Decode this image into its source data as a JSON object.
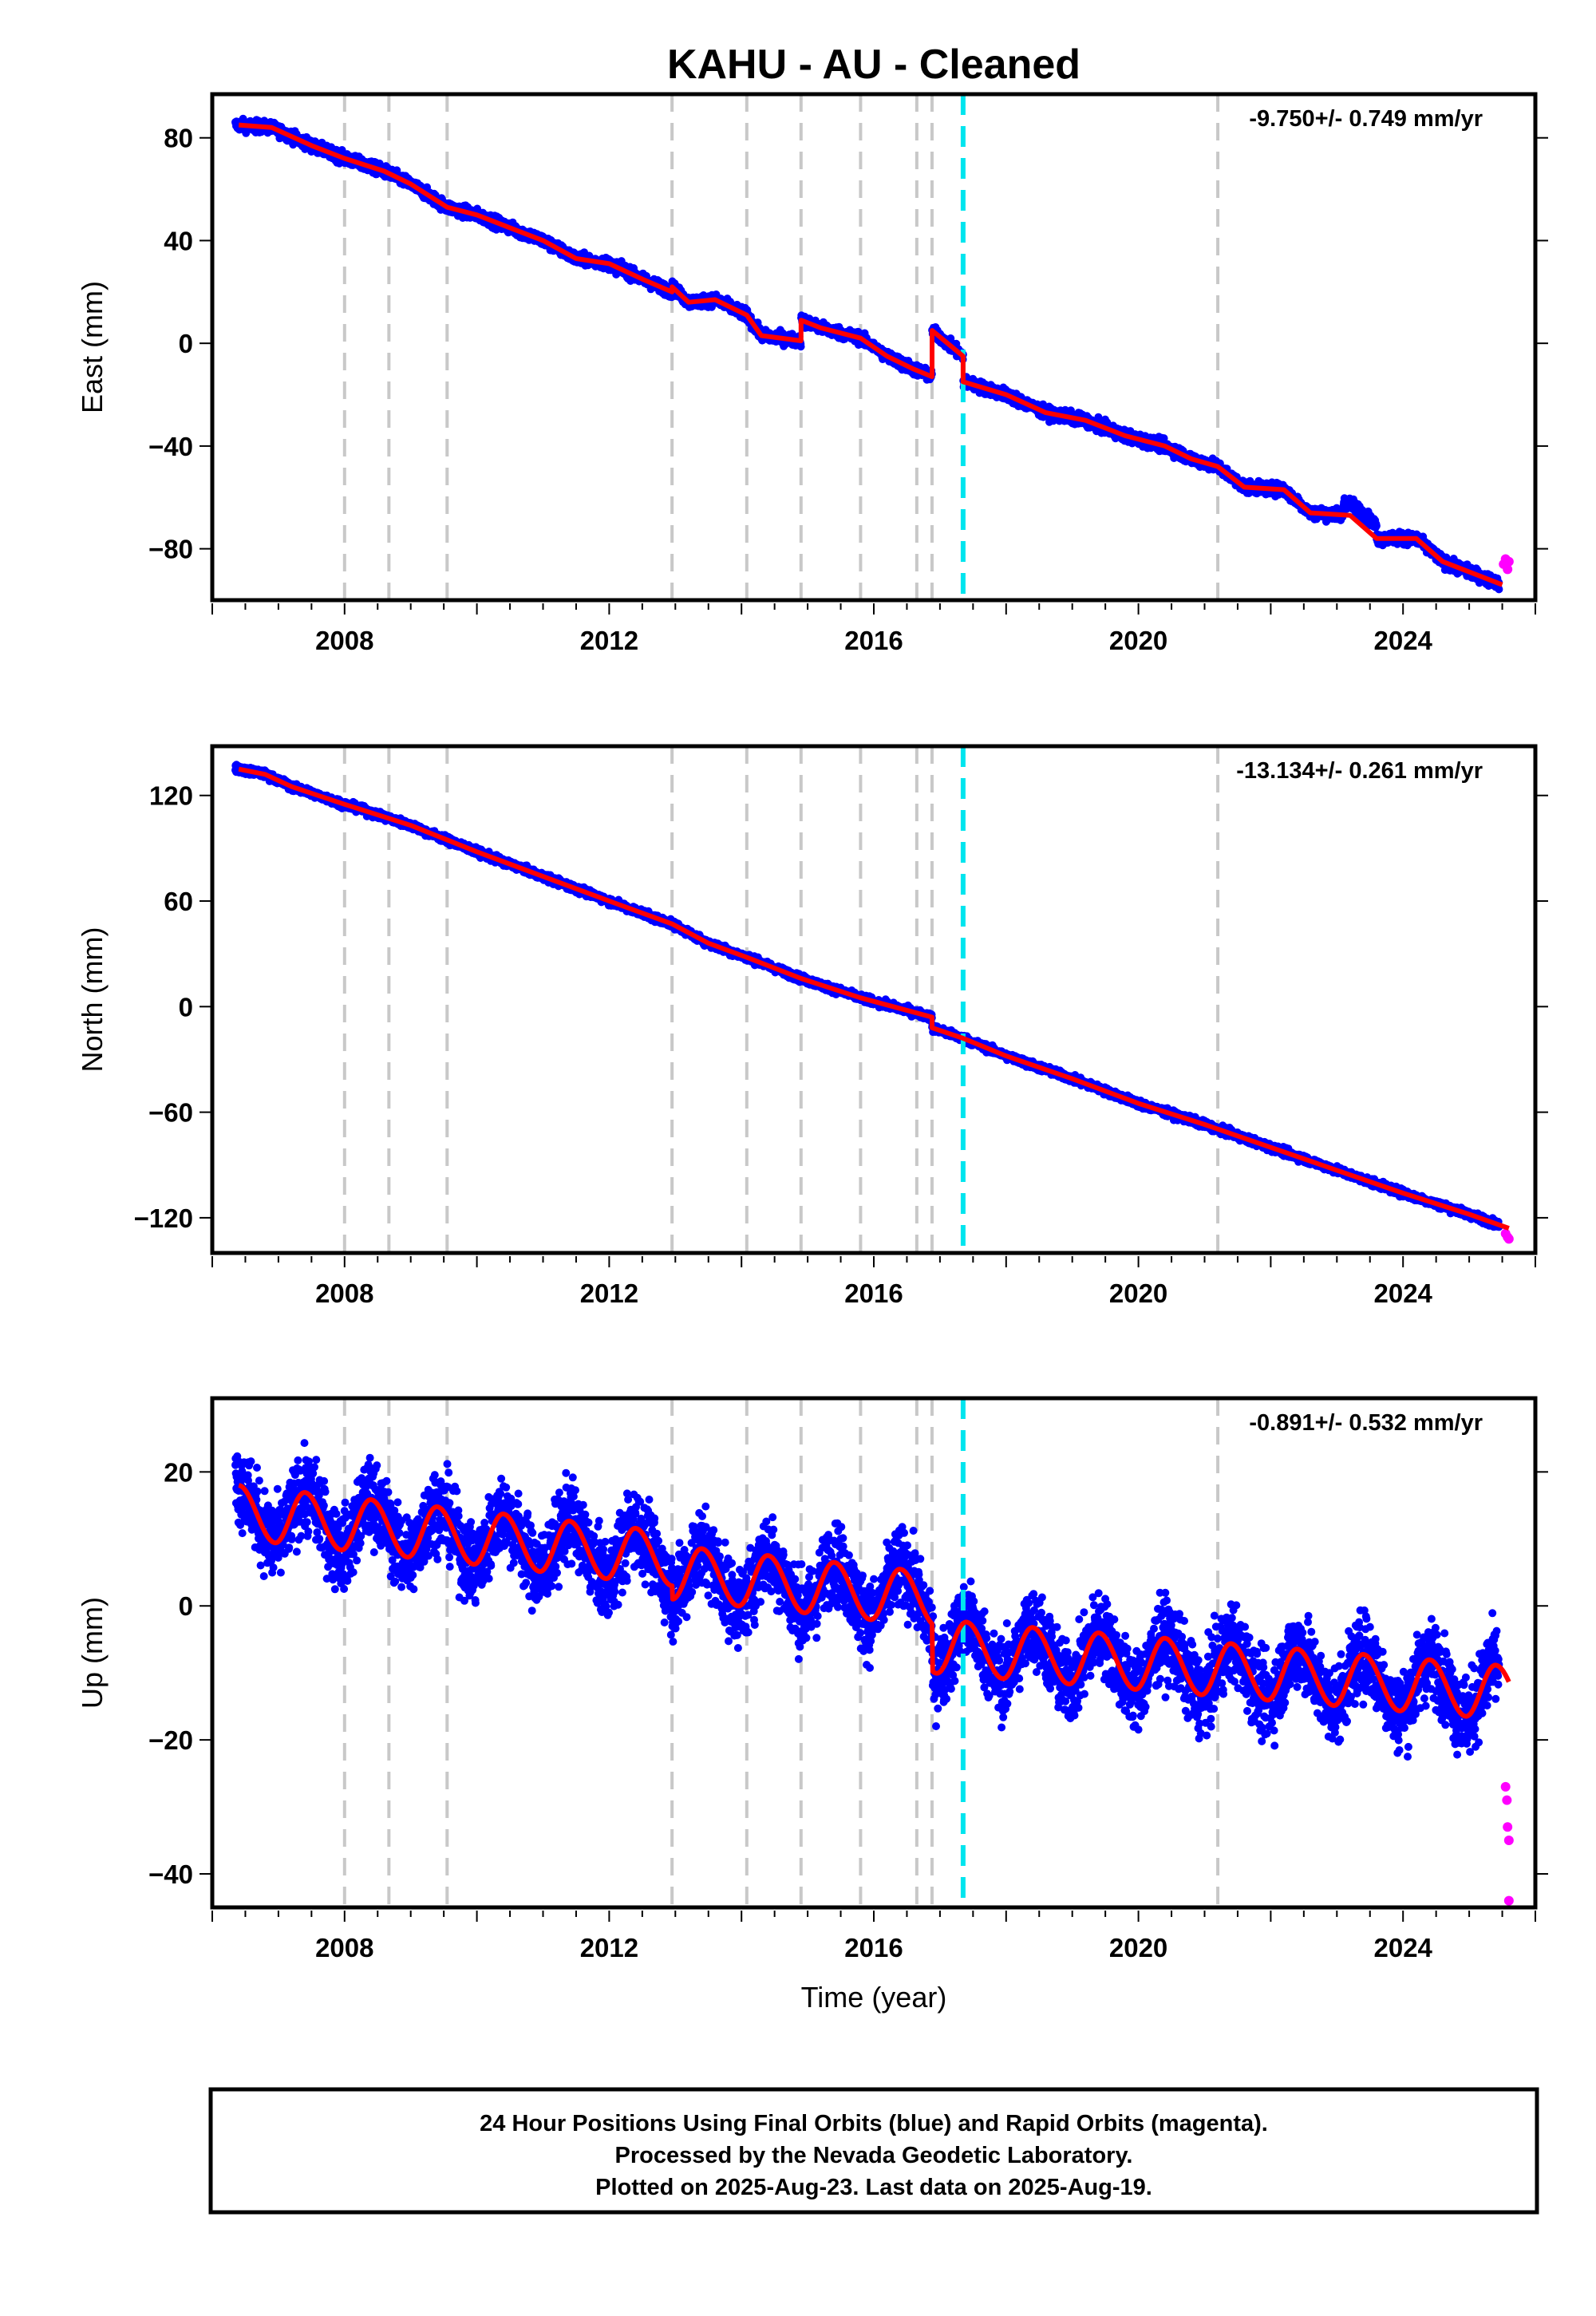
{
  "chart_data": {
    "type": "scatter",
    "title": "KAHU  - AU - Cleaned",
    "xlabel": "Time (year)",
    "xlim": [
      2006.0,
      2026.0
    ],
    "xticks": [
      "2008",
      "2012",
      "2016",
      "2020",
      "2024"
    ],
    "xtick_values": [
      2008,
      2012,
      2016,
      2020,
      2024
    ],
    "series_legend": [
      "Final Orbits (blue)",
      "Rapid Orbits (magenta)",
      "Model fit (red)"
    ],
    "colors": {
      "final": "#0000ff",
      "rapid": "#ff00ff",
      "model": "#ff0000",
      "event": "#c8c8c8",
      "equipment": "#00e5ee"
    },
    "event_lines": [
      2008.0,
      2008.67,
      2009.55,
      2012.95,
      2014.08,
      2014.9,
      2015.8,
      2016.65,
      2016.88
    ],
    "equipment_change": 2017.35,
    "extra_event": 2021.2,
    "panels": [
      {
        "name": "East",
        "ylabel": "East (mm)",
        "ylim": [
          -100,
          97
        ],
        "yticks": [
          "80",
          "40",
          "0",
          "−40",
          "−80"
        ],
        "ytick_values": [
          80,
          40,
          0,
          -40,
          -80
        ],
        "rate": "-9.750+/- 0.749 mm/yr",
        "model": [
          [
            2006.4,
            85
          ],
          [
            2006.9,
            84
          ],
          [
            2007.5,
            77
          ],
          [
            2008.0,
            72
          ],
          [
            2008.6,
            67
          ],
          [
            2009.0,
            62
          ],
          [
            2009.55,
            53
          ],
          [
            2010.0,
            50
          ],
          [
            2010.5,
            45
          ],
          [
            2011.0,
            40
          ],
          [
            2011.5,
            33
          ],
          [
            2012.0,
            31
          ],
          [
            2012.5,
            25
          ],
          [
            2012.95,
            20
          ],
          [
            2012.95,
            22
          ],
          [
            2013.2,
            16
          ],
          [
            2013.6,
            17
          ],
          [
            2014.08,
            11
          ],
          [
            2014.3,
            3
          ],
          [
            2014.9,
            1
          ],
          [
            2014.9,
            9
          ],
          [
            2015.2,
            6
          ],
          [
            2015.8,
            2
          ],
          [
            2016.2,
            -5
          ],
          [
            2016.6,
            -10
          ],
          [
            2016.88,
            -13
          ],
          [
            2016.88,
            5
          ],
          [
            2017.35,
            -5
          ],
          [
            2017.35,
            -15
          ],
          [
            2018.0,
            -20
          ],
          [
            2018.6,
            -27
          ],
          [
            2019.2,
            -30
          ],
          [
            2019.8,
            -36
          ],
          [
            2020.4,
            -40
          ],
          [
            2020.8,
            -45
          ],
          [
            2021.2,
            -48
          ],
          [
            2021.6,
            -56
          ],
          [
            2022.2,
            -57
          ],
          [
            2022.6,
            -66
          ],
          [
            2023.2,
            -67
          ],
          [
            2023.6,
            -76
          ],
          [
            2024.2,
            -76
          ],
          [
            2024.6,
            -85
          ],
          [
            2025.0,
            -89
          ],
          [
            2025.5,
            -94
          ]
        ],
        "rapid": [
          [
            2025.52,
            -86
          ],
          [
            2025.55,
            -84
          ],
          [
            2025.58,
            -88
          ],
          [
            2025.6,
            -85
          ]
        ]
      },
      {
        "name": "North",
        "ylabel": "North (mm)",
        "ylim": [
          -140,
          148
        ],
        "yticks": [
          "120",
          "60",
          "0",
          "−60",
          "−120"
        ],
        "ytick_values": [
          120,
          60,
          0,
          -60,
          -120
        ],
        "rate": "-13.134+/- 0.261 mm/yr",
        "model": [
          [
            2006.4,
            135
          ],
          [
            2006.8,
            132
          ],
          [
            2007.2,
            125
          ],
          [
            2008.0,
            115
          ],
          [
            2009.0,
            103
          ],
          [
            2010.0,
            88
          ],
          [
            2011.0,
            74
          ],
          [
            2012.0,
            60
          ],
          [
            2012.95,
            47
          ],
          [
            2013.5,
            36
          ],
          [
            2014.08,
            28
          ],
          [
            2014.9,
            16
          ],
          [
            2015.8,
            5
          ],
          [
            2016.88,
            -6
          ],
          [
            2016.88,
            -12
          ],
          [
            2017.35,
            -18
          ],
          [
            2018.0,
            -28
          ],
          [
            2019.0,
            -41
          ],
          [
            2020.0,
            -55
          ],
          [
            2021.0,
            -67
          ],
          [
            2022.0,
            -80
          ],
          [
            2023.0,
            -93
          ],
          [
            2024.0,
            -106
          ],
          [
            2025.0,
            -118
          ],
          [
            2025.6,
            -126
          ]
        ],
        "rapid": [
          [
            2025.55,
            -129
          ],
          [
            2025.58,
            -131
          ],
          [
            2025.6,
            -132
          ]
        ]
      },
      {
        "name": "Up",
        "ylabel": "Up (mm)",
        "ylim": [
          -45,
          31
        ],
        "yticks": [
          "20",
          "0",
          "−20",
          "−40"
        ],
        "ytick_values": [
          20,
          0,
          -20,
          -40
        ],
        "rate": "-0.891+/- 0.532 mm/yr",
        "model_trend": [
          [
            2006.4,
            14
          ],
          [
            2012.95,
            7
          ],
          [
            2012.95,
            5
          ],
          [
            2016.88,
            1
          ],
          [
            2016.88,
            -6
          ],
          [
            2025.6,
            -13
          ]
        ],
        "model_amplitude": 4,
        "rapid": [
          [
            2025.55,
            -27
          ],
          [
            2025.57,
            -29
          ],
          [
            2025.58,
            -33
          ],
          [
            2025.6,
            -35
          ],
          [
            2025.6,
            -44
          ]
        ]
      }
    ]
  },
  "footer": {
    "line1": "24 Hour Positions Using Final Orbits (blue) and Rapid Orbits (magenta).",
    "line2": "Processed by the Nevada Geodetic Laboratory.",
    "line3": "Plotted on 2025-Aug-23. Last data on 2025-Aug-19."
  }
}
